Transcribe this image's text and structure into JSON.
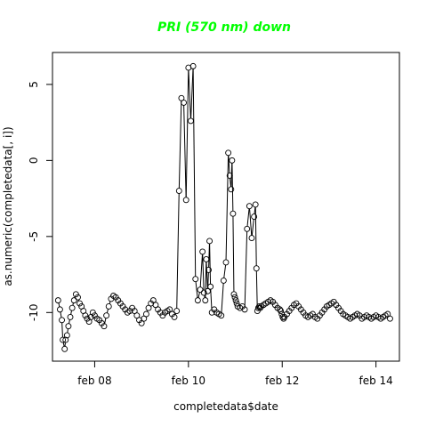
{
  "chart_data": {
    "type": "scatter",
    "title": "PRI (570 nm) down",
    "title_color": "#00ff00",
    "xlabel": "completedata$date",
    "ylabel": "as.numeric(completedata[, i])",
    "x_unit": "days since Feb 01",
    "xlim": [
      7.1,
      14.5
    ],
    "ylim": [
      -13.2,
      7.1
    ],
    "x_ticks": [
      8,
      10,
      12,
      14
    ],
    "x_tick_labels": [
      "feb 08",
      "feb 10",
      "feb 12",
      "feb 14"
    ],
    "y_ticks": [
      -10,
      -5,
      0,
      5
    ],
    "y_tick_labels": [
      "-10",
      "-5",
      "0",
      "5"
    ],
    "grid": false,
    "marker": "open-circle",
    "series_color": "#000000",
    "connect_points": true,
    "x": [
      7.22,
      7.26,
      7.3,
      7.32,
      7.36,
      7.38,
      7.41,
      7.44,
      7.48,
      7.52,
      7.56,
      7.6,
      7.64,
      7.68,
      7.72,
      7.76,
      7.8,
      7.84,
      7.88,
      7.92,
      7.96,
      8.0,
      8.05,
      8.1,
      8.15,
      8.2,
      8.25,
      8.3,
      8.35,
      8.4,
      8.45,
      8.5,
      8.55,
      8.6,
      8.65,
      8.7,
      8.75,
      8.8,
      8.85,
      8.9,
      8.95,
      9.0,
      9.05,
      9.1,
      9.15,
      9.2,
      9.25,
      9.3,
      9.35,
      9.4,
      9.45,
      9.5,
      9.55,
      9.6,
      9.65,
      9.7,
      9.75,
      9.8,
      9.85,
      9.9,
      9.95,
      10.0,
      10.05,
      10.1,
      10.15,
      10.2,
      10.25,
      10.3,
      10.33,
      10.36,
      10.38,
      10.41,
      10.43,
      10.45,
      10.47,
      10.5,
      10.55,
      10.6,
      10.65,
      10.7,
      10.75,
      10.8,
      10.85,
      10.88,
      10.91,
      10.93,
      10.95,
      10.97,
      10.99,
      11.01,
      11.03,
      11.05,
      11.1,
      11.15,
      11.2,
      11.25,
      11.3,
      11.35,
      11.4,
      11.43,
      11.45,
      11.47,
      11.49,
      11.51,
      11.53,
      11.55,
      11.6,
      11.65,
      11.7,
      11.75,
      11.8,
      11.85,
      11.9,
      11.95,
      11.97,
      11.99,
      12.01,
      12.03,
      12.05,
      12.1,
      12.15,
      12.2,
      12.25,
      12.3,
      12.35,
      12.4,
      12.45,
      12.5,
      12.55,
      12.6,
      12.65,
      12.7,
      12.75,
      12.8,
      12.85,
      12.9,
      12.95,
      13.0,
      13.05,
      13.1,
      13.15,
      13.2,
      13.25,
      13.3,
      13.35,
      13.4,
      13.45,
      13.5,
      13.55,
      13.6,
      13.65,
      13.7,
      13.75,
      13.8,
      13.85,
      13.9,
      13.95,
      14.0,
      14.05,
      14.1,
      14.15,
      14.2,
      14.25,
      14.3
    ],
    "y": [
      -9.2,
      -9.8,
      -10.5,
      -11.8,
      -12.4,
      -11.8,
      -11.5,
      -10.9,
      -10.3,
      -9.7,
      -9.2,
      -8.8,
      -9.0,
      -9.4,
      -9.6,
      -9.9,
      -10.2,
      -10.4,
      -10.6,
      -10.3,
      -10.0,
      -10.2,
      -10.4,
      -10.5,
      -10.7,
      -10.9,
      -10.2,
      -9.6,
      -9.1,
      -8.9,
      -9.0,
      -9.2,
      -9.4,
      -9.6,
      -9.8,
      -10.0,
      -9.9,
      -9.7,
      -9.9,
      -10.2,
      -10.5,
      -10.7,
      -10.4,
      -10.1,
      -9.7,
      -9.4,
      -9.2,
      -9.5,
      -9.8,
      -10.0,
      -10.2,
      -10.0,
      -9.9,
      -9.8,
      -10.1,
      -10.3,
      -9.9,
      -2.0,
      4.1,
      3.8,
      -2.6,
      6.1,
      2.6,
      6.2,
      -7.8,
      -9.2,
      -8.5,
      -6.0,
      -8.7,
      -9.2,
      -6.5,
      -8.6,
      -7.2,
      -5.3,
      -8.3,
      -10.0,
      -9.8,
      -10.0,
      -10.1,
      -10.2,
      -7.9,
      -6.7,
      0.5,
      -1.0,
      -1.9,
      0.0,
      -3.5,
      -8.8,
      -9.0,
      -9.2,
      -9.4,
      -9.6,
      -9.7,
      -9.6,
      -9.8,
      -4.5,
      -3.0,
      -5.1,
      -3.7,
      -2.9,
      -7.1,
      -9.9,
      -9.7,
      -9.6,
      -9.7,
      -9.6,
      -9.5,
      -9.4,
      -9.3,
      -9.2,
      -9.3,
      -9.5,
      -9.7,
      -9.8,
      -9.9,
      -10.1,
      -10.3,
      -10.4,
      -10.3,
      -10.1,
      -9.9,
      -9.7,
      -9.5,
      -9.4,
      -9.6,
      -9.8,
      -10.0,
      -10.2,
      -10.3,
      -10.2,
      -10.1,
      -10.3,
      -10.4,
      -10.2,
      -10.0,
      -9.8,
      -9.6,
      -9.5,
      -9.4,
      -9.3,
      -9.5,
      -9.7,
      -9.9,
      -10.1,
      -10.2,
      -10.3,
      -10.4,
      -10.3,
      -10.2,
      -10.1,
      -10.2,
      -10.4,
      -10.3,
      -10.2,
      -10.3,
      -10.4,
      -10.3,
      -10.2,
      -10.3,
      -10.4,
      -10.3,
      -10.2,
      -10.1,
      -10.4
    ]
  }
}
